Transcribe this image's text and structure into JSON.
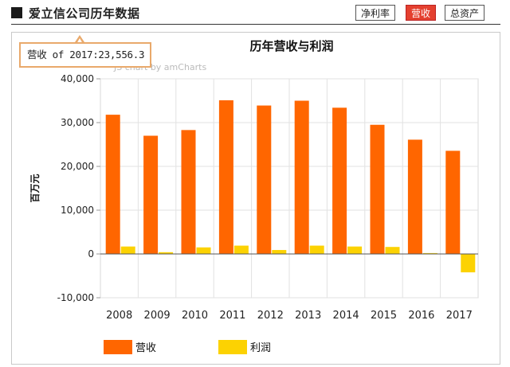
{
  "header": {
    "title": "爱立信公司历年数据",
    "tabs": [
      {
        "label": "净利率",
        "active": false
      },
      {
        "label": "营收",
        "active": true
      },
      {
        "label": "总资产",
        "active": false
      }
    ]
  },
  "tooltip": {
    "text": "营收 of 2017:23,556.3"
  },
  "watermark": "JS chart by amCharts",
  "colors": {
    "revenue": "#ff6600",
    "profit": "#fcd202",
    "active_tab": "#e4402f"
  },
  "chart_data": {
    "type": "bar",
    "title": "历年营收与利润",
    "ylabel": "百万元",
    "xlabel": "",
    "ylim": [
      -10000,
      40000
    ],
    "yticks": [
      -10000,
      0,
      10000,
      20000,
      30000,
      40000
    ],
    "ytick_labels": [
      "-10,000",
      "0",
      "10,000",
      "20,000",
      "30,000",
      "40,000"
    ],
    "categories": [
      "2008",
      "2009",
      "2010",
      "2011",
      "2012",
      "2013",
      "2014",
      "2015",
      "2016",
      "2017"
    ],
    "series": [
      {
        "name": "营收",
        "color": "#ff6600",
        "values": [
          31800,
          27000,
          28300,
          35100,
          33900,
          35000,
          33400,
          29500,
          26100,
          23556.3
        ]
      },
      {
        "name": "利润",
        "color": "#fcd202",
        "values": [
          1700,
          400,
          1500,
          1900,
          900,
          1900,
          1700,
          1600,
          200,
          -4200
        ]
      }
    ],
    "legend": "bottom-left",
    "grid": true
  }
}
